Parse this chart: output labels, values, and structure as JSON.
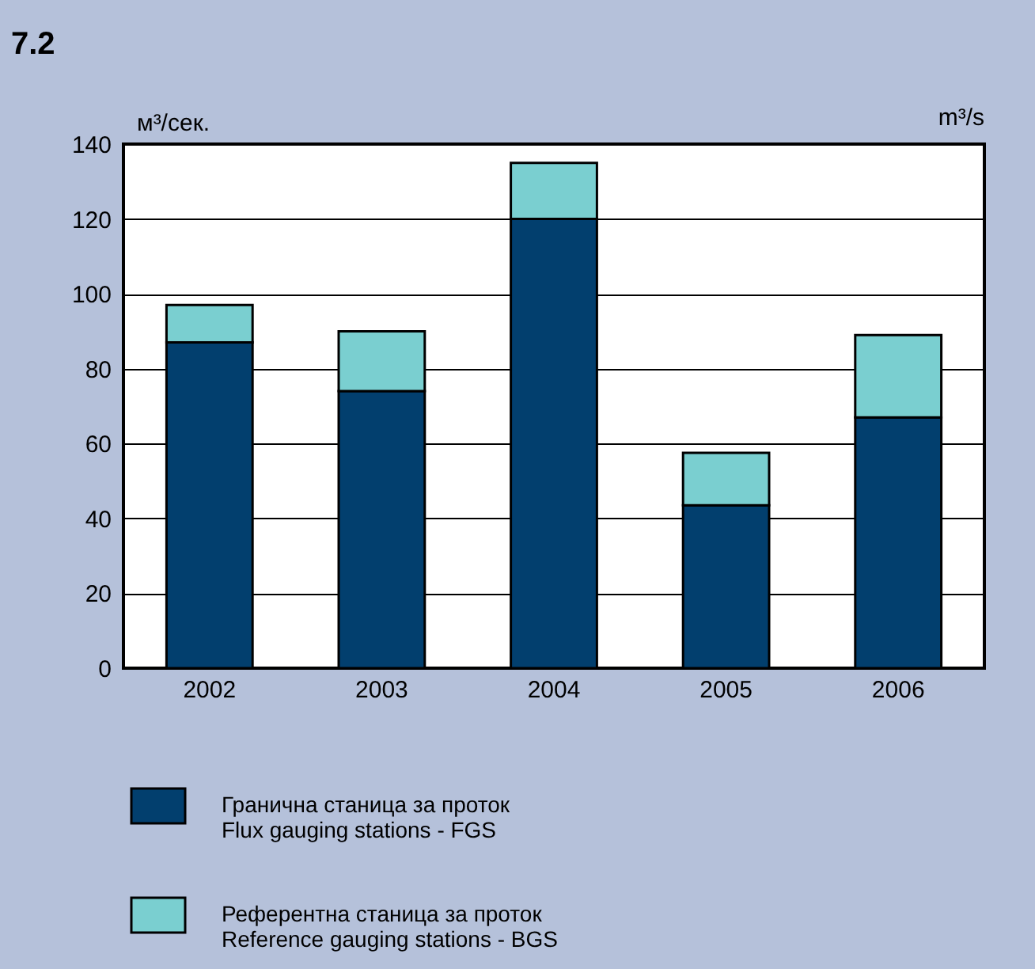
{
  "chart_data": {
    "type": "bar",
    "title": "7.2",
    "ylabel": "м³/сек.",
    "y2label": "m³/s",
    "categories": [
      "2002",
      "2003",
      "2004",
      "2005",
      "2006"
    ],
    "stacked": true,
    "series": [
      {
        "name": "Гранична станица за проток\nFlux gauging stations - FGS",
        "color": "#023f6e",
        "values": [
          87,
          74,
          120,
          43.5,
          67
        ]
      },
      {
        "name": "Референтна станица за проток\nReference gauging stations - BGS",
        "color": "#7acfd0",
        "values": [
          10,
          16,
          15,
          14,
          22
        ]
      }
    ],
    "ylim": [
      0,
      140
    ],
    "yticks": [
      0,
      20,
      40,
      60,
      80,
      100,
      120,
      140
    ],
    "grid": "y",
    "legend": "bottom left"
  }
}
